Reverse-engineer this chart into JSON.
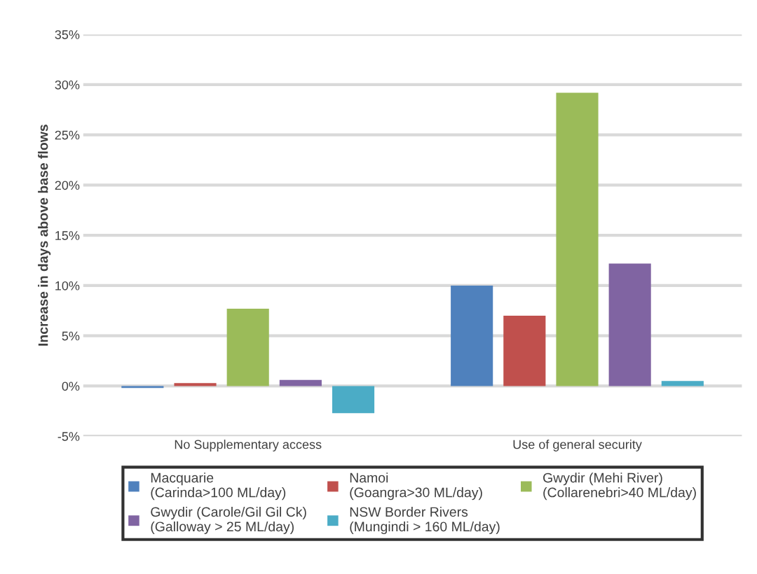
{
  "chart_data": {
    "type": "bar",
    "ylabel": "Increase in days above base flows",
    "categories": [
      "No Supplementary access",
      "Use of general security"
    ],
    "series": [
      {
        "name": "Macquarie\n(Carinda>100 ML/day)",
        "color": "#4f81bd",
        "values": [
          -0.2,
          10.0
        ]
      },
      {
        "name": "Namoi\n(Goangra>30 ML/day)",
        "color": "#c0504d",
        "values": [
          0.3,
          7.0
        ]
      },
      {
        "name": "Gwydir (Mehi River)\n(Collarenebri>40 ML/day)",
        "color": "#9bbb59",
        "values": [
          7.7,
          29.2
        ]
      },
      {
        "name": "Gwydir (Carole/Gil Gil Ck)\n(Galloway > 25 ML/day)",
        "color": "#8064a2",
        "values": [
          0.6,
          12.2
        ]
      },
      {
        "name": "NSW Border Rivers\n(Mungindi > 160 ML/day)",
        "color": "#4bacc6",
        "values": [
          -2.7,
          0.5
        ]
      }
    ],
    "ylim": [
      -5,
      35
    ],
    "yticks": [
      {
        "value": -5,
        "label": "-5%"
      },
      {
        "value": 0,
        "label": "0%"
      },
      {
        "value": 5,
        "label": "5%"
      },
      {
        "value": 10,
        "label": "10%"
      },
      {
        "value": 15,
        "label": "15%"
      },
      {
        "value": 20,
        "label": "20%"
      },
      {
        "value": 25,
        "label": "25%"
      },
      {
        "value": 30,
        "label": "30%"
      },
      {
        "value": 35,
        "label": "35%"
      }
    ],
    "grid": "y",
    "legend": "bottom"
  }
}
